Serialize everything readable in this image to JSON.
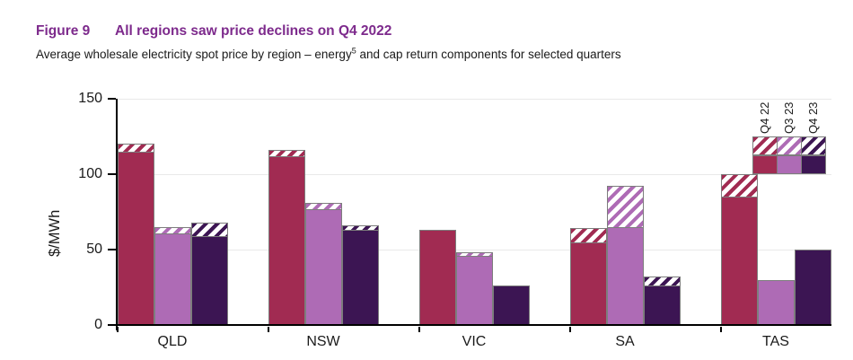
{
  "figure": {
    "label": "Figure 9",
    "title": "All regions saw price declines on Q4 2022",
    "subtitle_pre": "Average wholesale electricity spot price by region – energy",
    "subtitle_sup": "5",
    "subtitle_post": " and cap return components for selected quarters"
  },
  "colors": {
    "title_purple": "#7d2a8c",
    "q4_22": "#a12b52",
    "q3_23": "#ae6bb5",
    "q4_23": "#3c1553",
    "bar_border": "#7d7d7d",
    "gridline": "#e9e9e9",
    "axis": "#000000",
    "hatch_background": "#ffffff"
  },
  "chart_data": {
    "type": "bar",
    "title": "All regions saw price declines on Q4 2022",
    "subtitle": "Average wholesale electricity spot price by region – energy and cap return components for selected quarters",
    "ylabel": "$/MWh",
    "xlabel": "",
    "ylim": [
      0,
      150
    ],
    "yticks": [
      0,
      50,
      100,
      150
    ],
    "grid": true,
    "legend_position": "top-right",
    "categories": [
      "QLD",
      "NSW",
      "VIC",
      "SA",
      "TAS"
    ],
    "components": [
      "energy (solid)",
      "cap return (hatched)"
    ],
    "series": [
      {
        "name": "Q4 22",
        "color": "#a12b52",
        "energy": [
          115,
          112,
          63,
          55,
          85
        ],
        "cap_return": [
          5,
          4,
          0,
          9,
          15
        ],
        "total": [
          120,
          116,
          63,
          64,
          100
        ]
      },
      {
        "name": "Q3 23",
        "color": "#ae6bb5",
        "energy": [
          61,
          77,
          46,
          65,
          30
        ],
        "cap_return": [
          4,
          4,
          2,
          27,
          0
        ],
        "total": [
          65,
          81,
          48,
          92,
          30
        ]
      },
      {
        "name": "Q4 23",
        "color": "#3c1553",
        "energy": [
          59,
          63,
          26,
          26,
          50
        ],
        "cap_return": [
          9,
          3,
          0,
          6,
          0
        ],
        "total": [
          68,
          66,
          26,
          32,
          50
        ]
      }
    ]
  }
}
